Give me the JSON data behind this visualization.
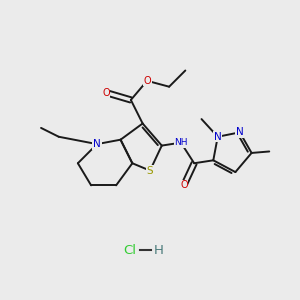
{
  "background_color": "#ebebeb",
  "bond_color": "#1a1a1a",
  "bond_width": 1.4,
  "atom_colors": {
    "N": "#0000cc",
    "S": "#999900",
    "O": "#cc0000",
    "H": "#4a7a7a",
    "C": "#1a1a1a",
    "Cl": "#33cc33"
  },
  "figsize": [
    3.0,
    3.0
  ],
  "dpi": 100,
  "xlim": [
    0,
    10
  ],
  "ylim": [
    0,
    10
  ]
}
